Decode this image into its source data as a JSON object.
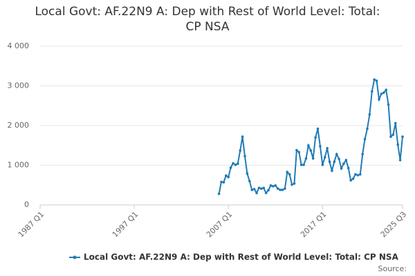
{
  "chart_data": {
    "type": "line",
    "title": "Local Govt: AF.22N9 A: Dep with Rest of World Level: Total: CP NSA",
    "source": "Source:",
    "categories": [
      "1987 Q1",
      null,
      null,
      null,
      null,
      null,
      null,
      null,
      null,
      null,
      null,
      null,
      null,
      null,
      null,
      null,
      null,
      null,
      null,
      null,
      null,
      null,
      null,
      null,
      null,
      null,
      null,
      null,
      null,
      null,
      null,
      null,
      null,
      null,
      null,
      null,
      null,
      null,
      null,
      null,
      "1997 Q1",
      null,
      null,
      null,
      null,
      null,
      null,
      null,
      null,
      null,
      null,
      null,
      null,
      null,
      null,
      null,
      null,
      null,
      null,
      null,
      null,
      null,
      null,
      null,
      null,
      null,
      null,
      null,
      null,
      null,
      null,
      null,
      null,
      null,
      null,
      null,
      null,
      null,
      null,
      null,
      "2007 Q1",
      null,
      null,
      null,
      null,
      null,
      null,
      null,
      null,
      null,
      null,
      null,
      null,
      null,
      null,
      null,
      null,
      null,
      null,
      null,
      null,
      null,
      null,
      null,
      null,
      null,
      null,
      null,
      null,
      null,
      null,
      null,
      null,
      null,
      null,
      null,
      null,
      null,
      null,
      null,
      "2017 Q1",
      null,
      null,
      null,
      null,
      null,
      null,
      null,
      null,
      null,
      null,
      null,
      null,
      null,
      null,
      null,
      null,
      null,
      null,
      null,
      null,
      null,
      null,
      null,
      null,
      null,
      null,
      null,
      null,
      null,
      null,
      null,
      null,
      null,
      "2025 Q3"
    ],
    "series": [
      {
        "name": "Local Govt: AF.22N9 A: Dep with Rest of World Level: Total: CP NSA",
        "color": "#1f7bb6",
        "values": [
          null,
          null,
          null,
          null,
          null,
          null,
          null,
          null,
          null,
          null,
          null,
          null,
          null,
          null,
          null,
          null,
          null,
          null,
          null,
          null,
          null,
          null,
          null,
          null,
          null,
          null,
          null,
          null,
          null,
          null,
          null,
          null,
          null,
          null,
          null,
          null,
          null,
          null,
          null,
          null,
          null,
          null,
          null,
          null,
          null,
          null,
          null,
          null,
          null,
          null,
          null,
          null,
          null,
          null,
          null,
          null,
          null,
          null,
          null,
          null,
          null,
          null,
          null,
          null,
          null,
          null,
          null,
          null,
          null,
          null,
          null,
          null,
          null,
          null,
          null,
          null,
          280,
          580,
          570,
          740,
          700,
          940,
          1050,
          1010,
          1040,
          1370,
          1720,
          1230,
          790,
          600,
          380,
          400,
          300,
          430,
          410,
          430,
          300,
          370,
          490,
          470,
          490,
          410,
          380,
          380,
          410,
          830,
          770,
          510,
          540,
          1380,
          1330,
          1010,
          1010,
          1170,
          1500,
          1370,
          1170,
          1700,
          1920,
          1480,
          1010,
          1200,
          1430,
          1090,
          860,
          1090,
          1280,
          1160,
          920,
          1040,
          1130,
          930,
          620,
          660,
          770,
          750,
          770,
          1280,
          1660,
          1920,
          2280,
          2860,
          3160,
          3130,
          2660,
          2800,
          2830,
          2900,
          2530,
          1720,
          1770,
          2060,
          1520,
          1130,
          1720
        ]
      }
    ],
    "ylim": [
      0,
      4000
    ],
    "yticks": [
      0,
      {
        "value": 1000,
        "label": "1 000"
      },
      {
        "value": 2000,
        "label": "2 000"
      },
      {
        "value": 3000,
        "label": "3 000"
      },
      {
        "value": 4000,
        "label": "4 000"
      }
    ],
    "grid": true
  }
}
